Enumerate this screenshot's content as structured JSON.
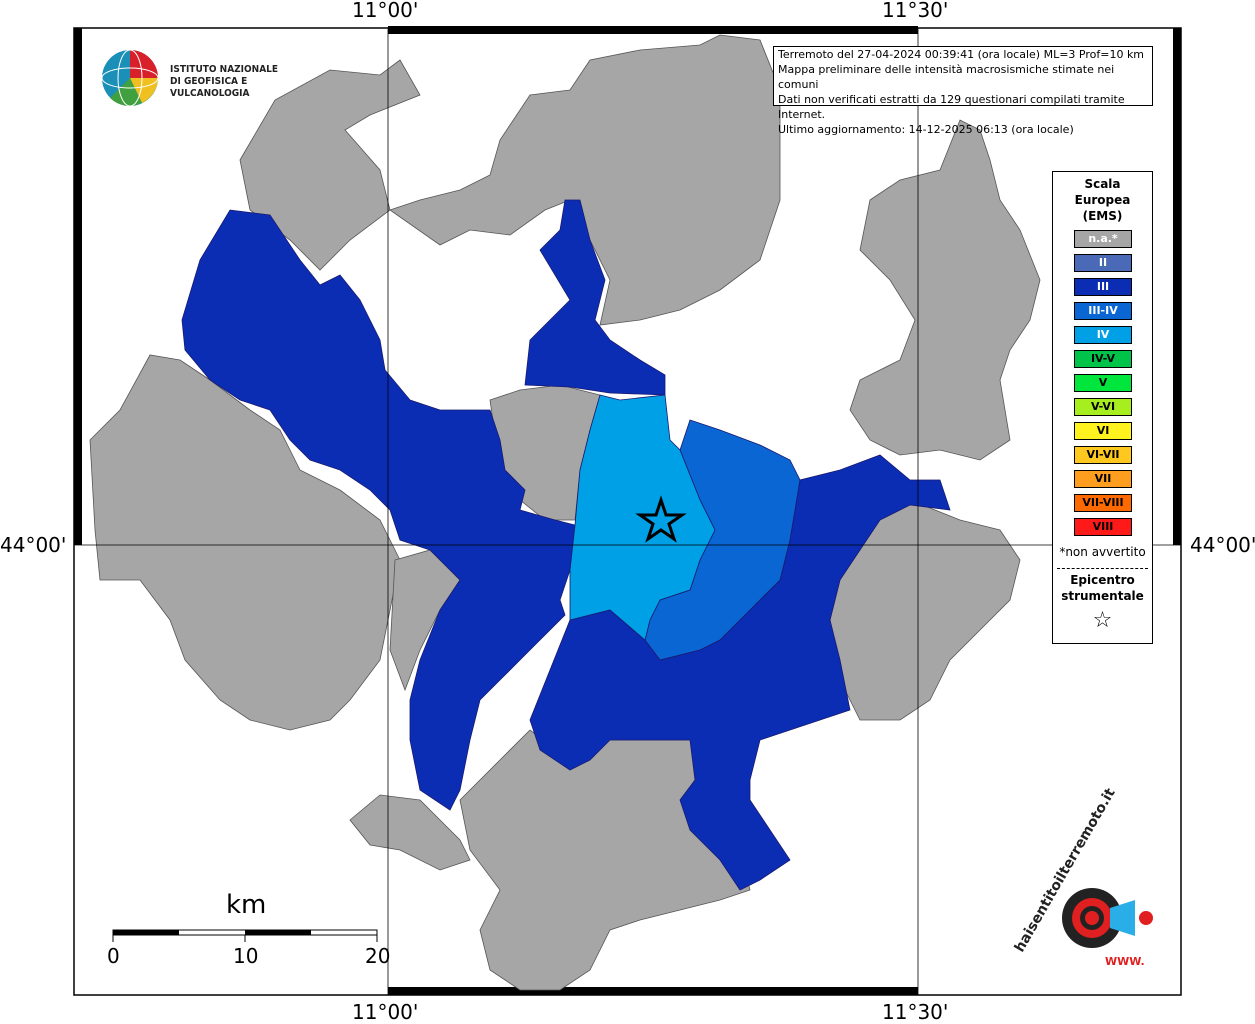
{
  "coords": {
    "top_left": "11°00'",
    "top_right": "11°30'",
    "bottom_left": "11°00'",
    "bottom_right": "11°30'",
    "left": "44°00'",
    "right": "44°00'"
  },
  "info": {
    "line1": "Terremoto del 27-04-2024 00:39:41 (ora locale) ML=3 Prof=10 km",
    "line2": "Mappa preliminare delle intensità macrosismiche stimate nei comuni",
    "line3": "Dati non verificati estratti da 129 questionari compilati tramite Internet.",
    "line4": "Ultimo aggiornamento: 14-12-2025 06:13 (ora locale)"
  },
  "logo": {
    "line1": "ISTITUTO NAZIONALE",
    "line2": "DI GEOFISICA E VULCANOLOGIA"
  },
  "legend": {
    "title1": "Scala",
    "title2": "Europea",
    "title3": "(EMS)",
    "items": [
      {
        "label": "n.a.*",
        "color": "#a6a6a6",
        "text": "#ffffff"
      },
      {
        "label": "II",
        "color": "#4a6ab8",
        "text": "#ffffff"
      },
      {
        "label": "III",
        "color": "#0a2db4",
        "text": "#ffffff"
      },
      {
        "label": "III-IV",
        "color": "#0a66d2",
        "text": "#ffffff"
      },
      {
        "label": "IV",
        "color": "#00a0e6",
        "text": "#ffffff"
      },
      {
        "label": "IV-V",
        "color": "#00c44a",
        "text": "#000000"
      },
      {
        "label": "V",
        "color": "#00e63c",
        "text": "#000000"
      },
      {
        "label": "V-VI",
        "color": "#a6ee1e",
        "text": "#000000"
      },
      {
        "label": "VI",
        "color": "#fff21e",
        "text": "#000000"
      },
      {
        "label": "VI-VII",
        "color": "#ffc81e",
        "text": "#000000"
      },
      {
        "label": "VII",
        "color": "#ff9e1e",
        "text": "#000000"
      },
      {
        "label": "VII-VIII",
        "color": "#ff6a00",
        "text": "#000000"
      },
      {
        "label": "VIII",
        "color": "#ff1a1a",
        "text": "#000000"
      }
    ],
    "note": "*non avvertito",
    "epi1": "Epicentro",
    "epi2": "strumentale",
    "star": "☆"
  },
  "scale": {
    "unit": "km",
    "ticks": [
      "0",
      "10",
      "20"
    ]
  },
  "watermark": {
    "text": "haisentitoilterremoto.it",
    "url": "WWW."
  }
}
